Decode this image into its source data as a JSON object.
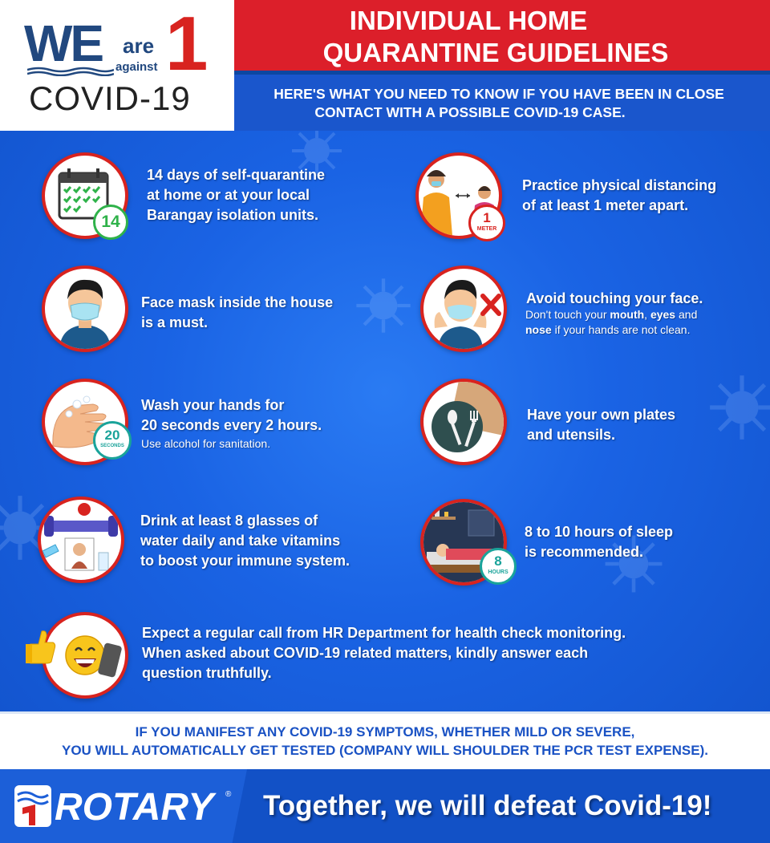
{
  "logo": {
    "we": "WE",
    "are": "are",
    "against": "against",
    "one": "1",
    "covid": "COVID-19"
  },
  "header": {
    "title_line1": "INDIVIDUAL HOME",
    "title_line2": "QUARANTINE GUIDELINES",
    "subtitle_line1": "HERE'S WHAT YOU NEED TO KNOW IF YOU HAVE BEEN IN CLOSE",
    "subtitle_line2": "CONTACT WITH A POSSIBLE COVID-19 CASE."
  },
  "guidelines": [
    {
      "icon": "calendar-icon",
      "badge": "14",
      "lines": [
        "14 days of self-quarantine",
        "at home or at your local",
        "Barangay isolation units."
      ]
    },
    {
      "icon": "distancing-icon",
      "badge_num": "1",
      "badge_unit": "METER",
      "lines": [
        "Practice physical distancing",
        "of at least 1 meter apart."
      ]
    },
    {
      "icon": "face-mask-icon",
      "lines": [
        "Face mask inside the house",
        "is a must."
      ]
    },
    {
      "icon": "no-touch-face-icon",
      "lines": [
        "Avoid touching your face."
      ],
      "note": {
        "pre": "Don't touch your ",
        "mouth": "mouth",
        "sep1": ", ",
        "eyes": "eyes",
        "mid": " and",
        "nose": "nose",
        "post": " if your hands are not clean."
      }
    },
    {
      "icon": "hand-wash-icon",
      "badge_num": "20",
      "badge_unit": "SECONDS",
      "lines": [
        "Wash your hands for",
        "20 seconds every 2 hours."
      ],
      "note_text": "Use alcohol for sanitation."
    },
    {
      "icon": "plate-utensils-icon",
      "lines": [
        "Have your own plates",
        "and utensils."
      ]
    },
    {
      "icon": "healthy-lifestyle-icon",
      "lines": [
        "Drink at least 8 glasses of",
        "water daily and take vitamins",
        "to boost your immune system."
      ]
    },
    {
      "icon": "sleep-icon",
      "badge_num": "8",
      "badge_unit": "HOURS",
      "lines": [
        "8 to 10 hours of sleep",
        "is recommended."
      ]
    },
    {
      "icon": "phone-call-icon",
      "lines": [
        "Expect a regular call from HR Department for health check monitoring.",
        "When asked about COVID-19 related matters, kindly answer each",
        "question truthfully."
      ]
    }
  ],
  "notice": {
    "line1": "IF YOU MANIFEST ANY COVID-19 SYMPTOMS, WHETHER MILD OR SEVERE,",
    "line2": "YOU WILL AUTOMATICALLY GET TESTED (COMPANY WILL SHOULDER THE PCR TEST EXPENSE)."
  },
  "footer": {
    "brand": "ROTARY",
    "registered": "®",
    "slogan": "Together, we will defeat Covid-19!"
  },
  "colors": {
    "brand_red": "#dc1f2a",
    "brand_blue": "#1a56cc",
    "background_blue": "#1565e6",
    "badge_green": "#2fb24a",
    "badge_teal": "#1aa39a"
  }
}
